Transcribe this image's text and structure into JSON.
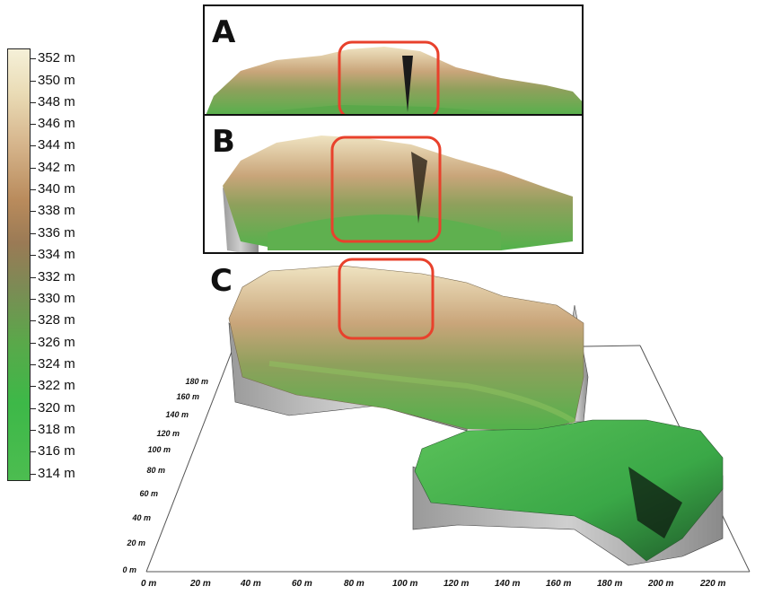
{
  "colorbar": {
    "labels": [
      "352 m",
      "350 m",
      "348 m",
      "346 m",
      "344 m",
      "342 m",
      "340 m",
      "338 m",
      "336 m",
      "334 m",
      "332 m",
      "330 m",
      "328 m",
      "326 m",
      "324 m",
      "322 m",
      "320 m",
      "318 m",
      "316 m",
      "314 m"
    ]
  },
  "panels": {
    "a": {
      "label": "A"
    },
    "b": {
      "label": "B"
    },
    "c": {
      "label": "C"
    }
  },
  "x_axis": {
    "labels": [
      "0 m",
      "20 m",
      "40 m",
      "60 m",
      "80 m",
      "100 m",
      "120 m",
      "140 m",
      "160 m",
      "180 m",
      "200 m",
      "220 m"
    ]
  },
  "y_axis": {
    "labels": [
      "0 m",
      "20 m",
      "40 m",
      "60 m",
      "80 m",
      "100 m",
      "120 m",
      "140 m",
      "160 m",
      "180 m"
    ]
  },
  "colors": {
    "highlight": "#e8412c",
    "terrain_high": "#efe2bf",
    "terrain_low": "#49b64c"
  }
}
